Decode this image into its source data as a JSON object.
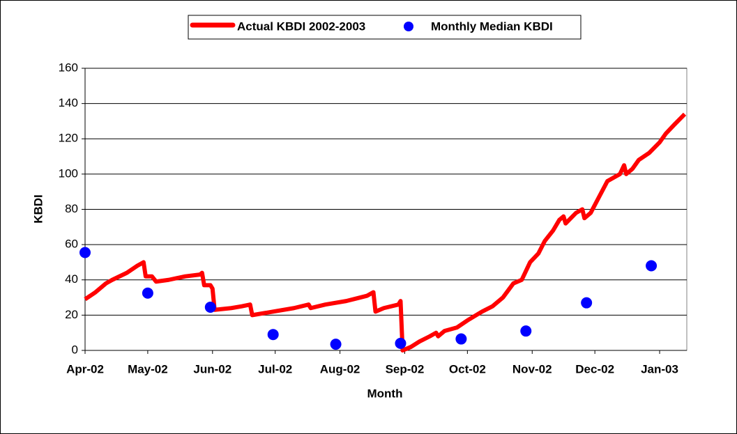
{
  "chart_data": {
    "type": "line",
    "y_label": "KBDI",
    "x_label": "Month",
    "xlim": [
      0,
      288
    ],
    "ylim": [
      0,
      160
    ],
    "yticks": [
      0,
      20,
      40,
      60,
      80,
      100,
      120,
      140,
      160
    ],
    "xticks": [
      {
        "value": 0,
        "label": "Apr-02"
      },
      {
        "value": 30,
        "label": "May-02"
      },
      {
        "value": 61,
        "label": "Jun-02"
      },
      {
        "value": 91,
        "label": "Jul-02"
      },
      {
        "value": 122,
        "label": "Aug-02"
      },
      {
        "value": 153,
        "label": "Sep-02"
      },
      {
        "value": 183,
        "label": "Oct-02"
      },
      {
        "value": 214,
        "label": "Nov-02"
      },
      {
        "value": 244,
        "label": "Dec-02"
      },
      {
        "value": 275,
        "label": "Jan-03"
      }
    ],
    "grid": true,
    "series": [
      {
        "name": "Actual KBDI 2002-2003",
        "color": "#ff0000",
        "mode": "line",
        "x": [
          0,
          5,
          10,
          13,
          20,
          25,
          28,
          29,
          32,
          34,
          40,
          48,
          55,
          56,
          57,
          60,
          61,
          62,
          70,
          75,
          79,
          80,
          90,
          100,
          107,
          108,
          115,
          125,
          135,
          138,
          139,
          143,
          150,
          151,
          152,
          156,
          160,
          165,
          168,
          169,
          172,
          178,
          183,
          190,
          195,
          200,
          205,
          209,
          213,
          217,
          220,
          224,
          227,
          229,
          230,
          235,
          238,
          239,
          242,
          246,
          250,
          256,
          258,
          259,
          262,
          265,
          270,
          275,
          278,
          282,
          287
        ],
        "values": [
          29,
          33,
          38,
          40,
          44,
          48,
          50,
          42,
          42,
          39,
          40,
          42,
          43,
          44,
          37,
          37,
          35,
          23,
          24,
          25,
          26,
          20,
          22,
          24,
          26,
          24,
          26,
          28,
          31,
          33,
          22,
          24,
          26,
          28,
          0,
          2,
          5,
          8,
          10,
          8,
          11,
          13,
          17,
          22,
          25,
          30,
          38,
          40,
          50,
          55,
          62,
          68,
          74,
          76,
          72,
          78,
          80,
          75,
          78,
          87,
          96,
          100,
          105,
          100,
          103,
          108,
          112,
          118,
          123,
          128,
          134
        ]
      },
      {
        "name": "Monthly Median KBDI",
        "color": "#0000ff",
        "mode": "markers",
        "x": [
          0,
          30,
          60,
          90,
          120,
          151,
          180,
          211,
          240,
          271
        ],
        "values": [
          55.5,
          32.5,
          24.5,
          9,
          3.5,
          4,
          6.5,
          11,
          27,
          48
        ]
      }
    ]
  }
}
